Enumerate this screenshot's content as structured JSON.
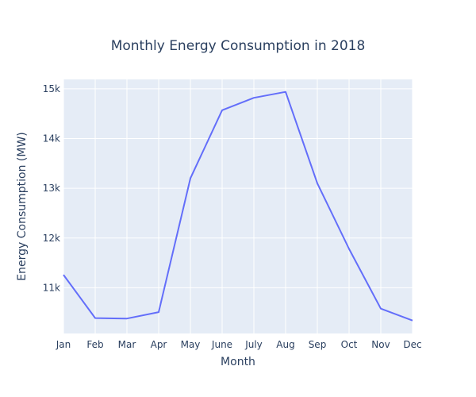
{
  "chart_data": {
    "type": "line",
    "title": "Monthly Energy Consumption in 2018",
    "xlabel": "Month",
    "ylabel": "Energy Consumption (MW)",
    "categories": [
      "Jan",
      "Feb",
      "Mar",
      "Apr",
      "May",
      "June",
      "July",
      "Aug",
      "Sep",
      "Oct",
      "Nov",
      "Dec"
    ],
    "series": [
      {
        "values": [
          11260,
          10390,
          10380,
          10510,
          13200,
          14570,
          14820,
          14940,
          13100,
          11780,
          10580,
          10340
        ]
      }
    ],
    "yticks": [
      11000,
      12000,
      13000,
      14000,
      15000
    ],
    "ytick_labels": [
      "11k",
      "12k",
      "13k",
      "14k",
      "15k"
    ],
    "ylim": [
      10080,
      15190
    ],
    "grid": true,
    "legend": "none",
    "colors": {
      "line": "#636efa",
      "plot_background": "#e5ecf6",
      "grid": "#ffffff",
      "text": "#2a3f5f"
    }
  }
}
